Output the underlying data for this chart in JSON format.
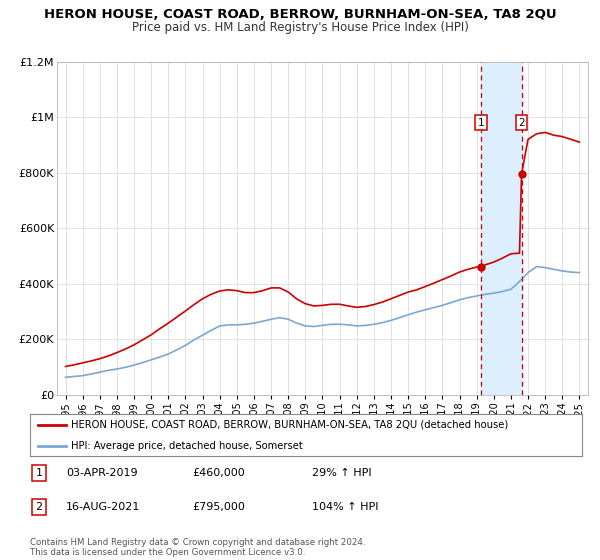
{
  "title": "HERON HOUSE, COAST ROAD, BERROW, BURNHAM-ON-SEA, TA8 2QU",
  "subtitle": "Price paid vs. HM Land Registry's House Price Index (HPI)",
  "background_color": "#ffffff",
  "plot_bg_color": "#ffffff",
  "legend_label_red": "HERON HOUSE, COAST ROAD, BERROW, BURNHAM-ON-SEA, TA8 2QU (detached house)",
  "legend_label_blue": "HPI: Average price, detached house, Somerset",
  "footnote": "Contains HM Land Registry data © Crown copyright and database right 2024.\nThis data is licensed under the Open Government Licence v3.0.",
  "marker1_date": 2019.25,
  "marker1_price": 460000,
  "marker2_date": 2021.62,
  "marker2_price": 795000,
  "hpi_x": [
    1995.0,
    1995.08,
    1995.17,
    1995.25,
    1995.33,
    1995.42,
    1995.5,
    1995.58,
    1995.67,
    1995.75,
    1995.83,
    1995.92,
    1996.0,
    1996.08,
    1996.17,
    1996.25,
    1996.33,
    1996.42,
    1996.5,
    1996.58,
    1996.67,
    1996.75,
    1996.83,
    1996.92,
    1997.0,
    1997.5,
    1998.0,
    1998.5,
    1999.0,
    1999.5,
    2000.0,
    2000.5,
    2001.0,
    2001.5,
    2002.0,
    2002.5,
    2003.0,
    2003.5,
    2004.0,
    2004.5,
    2005.0,
    2005.5,
    2006.0,
    2006.5,
    2007.0,
    2007.5,
    2008.0,
    2008.5,
    2009.0,
    2009.5,
    2010.0,
    2010.5,
    2011.0,
    2011.5,
    2012.0,
    2012.5,
    2013.0,
    2013.5,
    2014.0,
    2014.5,
    2015.0,
    2015.5,
    2016.0,
    2016.5,
    2017.0,
    2017.5,
    2018.0,
    2018.5,
    2019.0,
    2019.5,
    2020.0,
    2020.5,
    2021.0,
    2021.5,
    2022.0,
    2022.5,
    2023.0,
    2023.5,
    2024.0,
    2024.5,
    2025.0
  ],
  "hpi_y": [
    63000,
    63500,
    64000,
    64500,
    65000,
    65500,
    66000,
    66500,
    67000,
    67500,
    68000,
    68500,
    69000,
    70000,
    71000,
    72000,
    73000,
    74000,
    75000,
    76000,
    77000,
    78000,
    79000,
    80000,
    82000,
    88000,
    93000,
    99000,
    107000,
    116000,
    126000,
    136000,
    147000,
    162000,
    178000,
    198000,
    215000,
    232000,
    248000,
    252000,
    252000,
    254000,
    258000,
    265000,
    272000,
    278000,
    272000,
    258000,
    248000,
    246000,
    250000,
    254000,
    254000,
    252000,
    248000,
    250000,
    254000,
    260000,
    268000,
    278000,
    288000,
    298000,
    306000,
    314000,
    322000,
    332000,
    342000,
    350000,
    356000,
    362000,
    366000,
    372000,
    380000,
    408000,
    440000,
    462000,
    458000,
    452000,
    446000,
    442000,
    440000
  ],
  "red_x": [
    1995.0,
    1995.5,
    1996.0,
    1996.5,
    1997.0,
    1997.5,
    1998.0,
    1998.5,
    1999.0,
    1999.5,
    2000.0,
    2000.5,
    2001.0,
    2001.5,
    2002.0,
    2002.5,
    2003.0,
    2003.5,
    2004.0,
    2004.5,
    2005.0,
    2005.5,
    2006.0,
    2006.5,
    2007.0,
    2007.5,
    2008.0,
    2008.5,
    2009.0,
    2009.5,
    2010.0,
    2010.5,
    2011.0,
    2011.5,
    2012.0,
    2012.5,
    2013.0,
    2013.5,
    2014.0,
    2014.5,
    2015.0,
    2015.5,
    2016.0,
    2016.5,
    2017.0,
    2017.5,
    2018.0,
    2018.5,
    2019.0,
    2019.25,
    2019.5,
    2020.0,
    2020.5,
    2021.0,
    2021.5,
    2021.62,
    2022.0,
    2022.5,
    2023.0,
    2023.5,
    2024.0,
    2024.5,
    2025.0
  ],
  "red_y": [
    102000,
    108000,
    115000,
    122000,
    130000,
    140000,
    152000,
    165000,
    180000,
    198000,
    216000,
    238000,
    258000,
    280000,
    302000,
    325000,
    346000,
    362000,
    374000,
    378000,
    375000,
    368000,
    368000,
    375000,
    385000,
    385000,
    370000,
    345000,
    328000,
    320000,
    322000,
    326000,
    326000,
    320000,
    315000,
    318000,
    325000,
    334000,
    346000,
    358000,
    370000,
    378000,
    390000,
    402000,
    415000,
    428000,
    442000,
    452000,
    460000,
    460000,
    468000,
    478000,
    492000,
    508000,
    510000,
    795000,
    920000,
    940000,
    945000,
    935000,
    930000,
    920000,
    910000
  ],
  "ylim": [
    0,
    1200000
  ],
  "yticks": [
    0,
    200000,
    400000,
    600000,
    800000,
    1000000,
    1200000
  ],
  "ytick_labels": [
    "£0",
    "£200K",
    "£400K",
    "£600K",
    "£800K",
    "£1M",
    "£1.2M"
  ],
  "xticks": [
    1995,
    1996,
    1997,
    1998,
    1999,
    2000,
    2001,
    2002,
    2003,
    2004,
    2005,
    2006,
    2007,
    2008,
    2009,
    2010,
    2011,
    2012,
    2013,
    2014,
    2015,
    2016,
    2017,
    2018,
    2019,
    2020,
    2021,
    2022,
    2023,
    2024,
    2025
  ],
  "xlim": [
    1994.5,
    2025.5
  ],
  "red_color": "#cc0000",
  "blue_color": "#7ba7d4",
  "dashed_color": "#cc0000",
  "shade_color": "#ddeeff",
  "grid_color": "#dddddd",
  "table1_date": "03-APR-2019",
  "table1_price": "£460,000",
  "table1_hpi": "29% ↑ HPI",
  "table2_date": "16-AUG-2021",
  "table2_price": "£795,000",
  "table2_hpi": "104% ↑ HPI"
}
